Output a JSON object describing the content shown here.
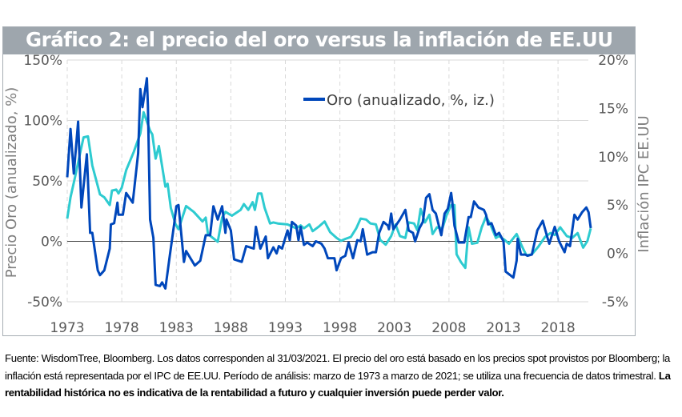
{
  "title": "Gráfico 2: el precio del oro versus la inflación de EE.UU",
  "footer": {
    "text": "Fuente: WisdomTree, Bloomberg. Los datos corresponden al 31/03/2021. El precio del oro está basado en los precios spot provistos por Bloomberg; la inflación está representada por el IPC de EE.UU.  Período de análisis: marzo de 1973 a marzo de 2021; se utiliza una frecuencia de datos trimestral. ",
    "bold_text": "La rentabilidad histórica no es indicativa de la rentabilidad a futuro y cualquier inversión puede perder valor."
  },
  "colors": {
    "title_bar": "#9ea6ad",
    "gold": "#0047bb",
    "inflation": "#2ecbd0",
    "grid": "#d9d9d9",
    "zero_line": "#404040"
  },
  "chart_data": {
    "type": "line",
    "xlabel": "",
    "ylabel": "Precio Oro (anualizado, %)",
    "y2label": "Inflación IPC EE.UU",
    "xlim": [
      1973,
      2021.25
    ],
    "ylim": [
      -50,
      150
    ],
    "y2lim": [
      -5,
      20
    ],
    "grid": true,
    "legend_position": "top-center",
    "x_tick_labels": [
      "1973",
      "1978",
      "1983",
      "1988",
      "1993",
      "1998",
      "2003",
      "2008",
      "2013",
      "2018"
    ],
    "x_ticks": [
      1973,
      1978,
      1983,
      1988,
      1993,
      1998,
      2003,
      2008,
      2013,
      2018
    ],
    "y_tick_labels": [
      "150%",
      "100%",
      "50%",
      "0%",
      "-50%"
    ],
    "y_ticks": [
      150,
      100,
      50,
      0,
      -50
    ],
    "y2_tick_labels": [
      "20%",
      "15%",
      "10%",
      "5%",
      "0%",
      "-5%"
    ],
    "y2_ticks": [
      20,
      15,
      10,
      5,
      0,
      -5
    ],
    "series": [
      {
        "name": "Oro (anualizado, %, iz.)",
        "axis": "left",
        "in_legend": true,
        "points": [
          [
            1973.0,
            53
          ],
          [
            1973.3,
            93
          ],
          [
            1973.6,
            56
          ],
          [
            1974.0,
            99
          ],
          [
            1974.3,
            28
          ],
          [
            1974.8,
            72
          ],
          [
            1975.1,
            7
          ],
          [
            1975.3,
            7
          ],
          [
            1975.8,
            -24
          ],
          [
            1976.0,
            -28
          ],
          [
            1976.4,
            -24
          ],
          [
            1976.9,
            -6
          ],
          [
            1977.0,
            14
          ],
          [
            1977.3,
            15
          ],
          [
            1977.6,
            32
          ],
          [
            1977.7,
            22
          ],
          [
            1978.1,
            22
          ],
          [
            1978.4,
            40
          ],
          [
            1979.0,
            32
          ],
          [
            1979.5,
            73
          ],
          [
            1979.7,
            126
          ],
          [
            1979.9,
            111
          ],
          [
            1980.3,
            135
          ],
          [
            1980.4,
            112
          ],
          [
            1980.6,
            18
          ],
          [
            1980.9,
            3
          ],
          [
            1981.1,
            -36
          ],
          [
            1981.5,
            -37
          ],
          [
            1981.7,
            -34
          ],
          [
            1982.0,
            -39
          ],
          [
            1982.4,
            -12
          ],
          [
            1982.8,
            14
          ],
          [
            1983.0,
            29
          ],
          [
            1983.2,
            30
          ],
          [
            1983.7,
            -17
          ],
          [
            1983.9,
            -8
          ],
          [
            1984.7,
            -20
          ],
          [
            1985.2,
            -16
          ],
          [
            1985.7,
            5
          ],
          [
            1986.1,
            5
          ],
          [
            1986.4,
            29
          ],
          [
            1986.8,
            18
          ],
          [
            1987.2,
            29
          ],
          [
            1987.5,
            7
          ],
          [
            1987.6,
            18
          ],
          [
            1988.0,
            9
          ],
          [
            1988.3,
            -15
          ],
          [
            1989.0,
            -17
          ],
          [
            1989.4,
            -4
          ],
          [
            1990.1,
            -6
          ],
          [
            1990.3,
            12
          ],
          [
            1990.7,
            -6
          ],
          [
            1991.2,
            4
          ],
          [
            1991.4,
            -14
          ],
          [
            1991.9,
            -5
          ],
          [
            1992.2,
            -10
          ],
          [
            1992.4,
            -4
          ],
          [
            1992.7,
            -6
          ],
          [
            1993.2,
            9
          ],
          [
            1993.4,
            1
          ],
          [
            1993.6,
            16
          ],
          [
            1994.0,
            13
          ],
          [
            1994.2,
            1
          ],
          [
            1994.4,
            12
          ],
          [
            1994.7,
            -3
          ],
          [
            1995.0,
            -1
          ],
          [
            1995.5,
            -4
          ],
          [
            1995.8,
            0
          ],
          [
            1996.3,
            -2
          ],
          [
            1996.6,
            -6
          ],
          [
            1996.9,
            -14
          ],
          [
            1997.5,
            -14
          ],
          [
            1997.7,
            -24
          ],
          [
            1998.1,
            -14
          ],
          [
            1998.5,
            -12
          ],
          [
            1998.8,
            -1
          ],
          [
            1999.2,
            -14
          ],
          [
            1999.6,
            1
          ],
          [
            1999.9,
            0
          ],
          [
            2000.1,
            10
          ],
          [
            2000.5,
            -11
          ],
          [
            2001.0,
            -9
          ],
          [
            2001.3,
            -9
          ],
          [
            2001.6,
            7
          ],
          [
            2002.0,
            16
          ],
          [
            2002.4,
            13
          ],
          [
            2002.5,
            10
          ],
          [
            2002.7,
            23
          ],
          [
            2002.9,
            10
          ],
          [
            2003.5,
            18
          ],
          [
            2004.0,
            26
          ],
          [
            2004.3,
            9
          ],
          [
            2004.7,
            7
          ],
          [
            2004.9,
            0
          ],
          [
            2005.3,
            11
          ],
          [
            2005.6,
            16
          ],
          [
            2005.9,
            36
          ],
          [
            2006.2,
            39
          ],
          [
            2006.5,
            26
          ],
          [
            2006.8,
            23
          ],
          [
            2007.1,
            12
          ],
          [
            2007.3,
            5
          ],
          [
            2007.6,
            23
          ],
          [
            2007.9,
            27
          ],
          [
            2008.2,
            40
          ],
          [
            2008.3,
            33
          ],
          [
            2008.5,
            13
          ],
          [
            2008.9,
            -1
          ],
          [
            2009.4,
            -1
          ],
          [
            2009.8,
            20
          ],
          [
            2010.0,
            20
          ],
          [
            2010.3,
            33
          ],
          [
            2010.7,
            28
          ],
          [
            2011.2,
            26
          ],
          [
            2011.4,
            22
          ],
          [
            2011.6,
            14
          ],
          [
            2011.9,
            15
          ],
          [
            2012.3,
            5
          ],
          [
            2012.6,
            7
          ],
          [
            2013.0,
            0
          ],
          [
            2013.2,
            -25
          ],
          [
            2013.9,
            -30
          ],
          [
            2014.2,
            -16
          ],
          [
            2014.3,
            2
          ],
          [
            2014.6,
            -11
          ],
          [
            2015.0,
            -11
          ],
          [
            2015.2,
            -12
          ],
          [
            2015.6,
            -11
          ],
          [
            2016.1,
            9
          ],
          [
            2016.6,
            17
          ],
          [
            2017.0,
            4
          ],
          [
            2017.2,
            -2
          ],
          [
            2017.7,
            12
          ],
          [
            2018.1,
            0
          ],
          [
            2018.6,
            -9
          ],
          [
            2018.8,
            -2
          ],
          [
            2019.1,
            -4
          ],
          [
            2019.5,
            22
          ],
          [
            2019.8,
            18
          ],
          [
            2020.2,
            24
          ],
          [
            2020.6,
            28
          ],
          [
            2020.8,
            24
          ],
          [
            2021.0,
            11
          ]
        ]
      },
      {
        "axis": "right",
        "in_legend": false,
        "points": [
          [
            1973.0,
            3.6
          ],
          [
            1973.3,
            5.8
          ],
          [
            1973.7,
            7.8
          ],
          [
            1974.2,
            10.5
          ],
          [
            1974.5,
            12.0
          ],
          [
            1974.9,
            12.1
          ],
          [
            1975.3,
            9.1
          ],
          [
            1976.0,
            6.1
          ],
          [
            1976.4,
            5.8
          ],
          [
            1976.9,
            5.0
          ],
          [
            1977.1,
            6.5
          ],
          [
            1977.5,
            6.6
          ],
          [
            1977.7,
            6.2
          ],
          [
            1978.0,
            6.8
          ],
          [
            1978.4,
            8.6
          ],
          [
            1979.1,
            10.5
          ],
          [
            1979.7,
            12.4
          ],
          [
            1980.0,
            14.6
          ],
          [
            1980.6,
            12.7
          ],
          [
            1980.8,
            12.3
          ],
          [
            1981.1,
            9.8
          ],
          [
            1981.4,
            11.1
          ],
          [
            1982.0,
            6.9
          ],
          [
            1982.2,
            7.2
          ],
          [
            1982.5,
            4.7
          ],
          [
            1982.9,
            3.1
          ],
          [
            1983.2,
            2.5
          ],
          [
            1983.9,
            4.9
          ],
          [
            1984.6,
            4.3
          ],
          [
            1985.4,
            3.3
          ],
          [
            1985.7,
            3.7
          ],
          [
            1985.9,
            2.0
          ],
          [
            1986.8,
            1.2
          ],
          [
            1987.2,
            3.7
          ],
          [
            1987.5,
            4.3
          ],
          [
            1988.1,
            3.9
          ],
          [
            1988.9,
            4.5
          ],
          [
            1989.2,
            5.1
          ],
          [
            1989.6,
            4.5
          ],
          [
            1990.0,
            5.3
          ],
          [
            1990.2,
            4.5
          ],
          [
            1990.5,
            6.2
          ],
          [
            1990.8,
            6.2
          ],
          [
            1991.1,
            4.7
          ],
          [
            1991.6,
            3.1
          ],
          [
            1991.9,
            3.2
          ],
          [
            1992.3,
            3.1
          ],
          [
            1993.2,
            3.0
          ],
          [
            1994.0,
            2.6
          ],
          [
            1994.4,
            2.9
          ],
          [
            1994.7,
            2.6
          ],
          [
            1995.2,
            3.0
          ],
          [
            1995.5,
            2.3
          ],
          [
            1996.1,
            2.8
          ],
          [
            1996.6,
            3.3
          ],
          [
            1997.1,
            2.2
          ],
          [
            1997.7,
            1.6
          ],
          [
            1998.1,
            1.3
          ],
          [
            1998.5,
            1.5
          ],
          [
            1999.0,
            1.7
          ],
          [
            1999.5,
            2.6
          ],
          [
            1999.9,
            3.6
          ],
          [
            2000.4,
            3.5
          ],
          [
            2000.8,
            3.1
          ],
          [
            2001.3,
            3.0
          ],
          [
            2001.7,
            1.4
          ],
          [
            2002.2,
            0.9
          ],
          [
            2002.7,
            1.8
          ],
          [
            2003.1,
            3.0
          ],
          [
            2003.5,
            1.8
          ],
          [
            2004.0,
            1.6
          ],
          [
            2004.3,
            3.2
          ],
          [
            2004.8,
            3.1
          ],
          [
            2005.1,
            2.4
          ],
          [
            2005.4,
            4.6
          ],
          [
            2005.8,
            3.2
          ],
          [
            2006.2,
            4.0
          ],
          [
            2006.5,
            2.0
          ],
          [
            2006.9,
            2.7
          ],
          [
            2007.4,
            2.6
          ],
          [
            2007.8,
            4.0
          ],
          [
            2008.2,
            5.0
          ],
          [
            2008.5,
            5.0
          ],
          [
            2008.7,
            -0.1
          ],
          [
            2009.1,
            -0.9
          ],
          [
            2009.5,
            -1.5
          ],
          [
            2009.8,
            2.7
          ],
          [
            2010.1,
            1.0
          ],
          [
            2010.6,
            1.1
          ],
          [
            2011.0,
            2.7
          ],
          [
            2011.4,
            3.8
          ],
          [
            2011.8,
            3.0
          ],
          [
            2012.3,
            1.6
          ],
          [
            2012.6,
            1.8
          ],
          [
            2013.1,
            1.4
          ],
          [
            2013.5,
            1.0
          ],
          [
            2014.2,
            2.0
          ],
          [
            2014.7,
            0.7
          ],
          [
            2015.1,
            -0.2
          ],
          [
            2015.6,
            -0.1
          ],
          [
            2016.2,
            0.7
          ],
          [
            2016.8,
            1.7
          ],
          [
            2017.3,
            2.1
          ],
          [
            2017.7,
            1.9
          ],
          [
            2018.2,
            2.7
          ],
          [
            2018.8,
            1.8
          ],
          [
            2019.3,
            1.6
          ],
          [
            2019.8,
            2.1
          ],
          [
            2020.3,
            0.6
          ],
          [
            2020.7,
            1.3
          ],
          [
            2021.0,
            2.6
          ]
        ]
      }
    ]
  }
}
